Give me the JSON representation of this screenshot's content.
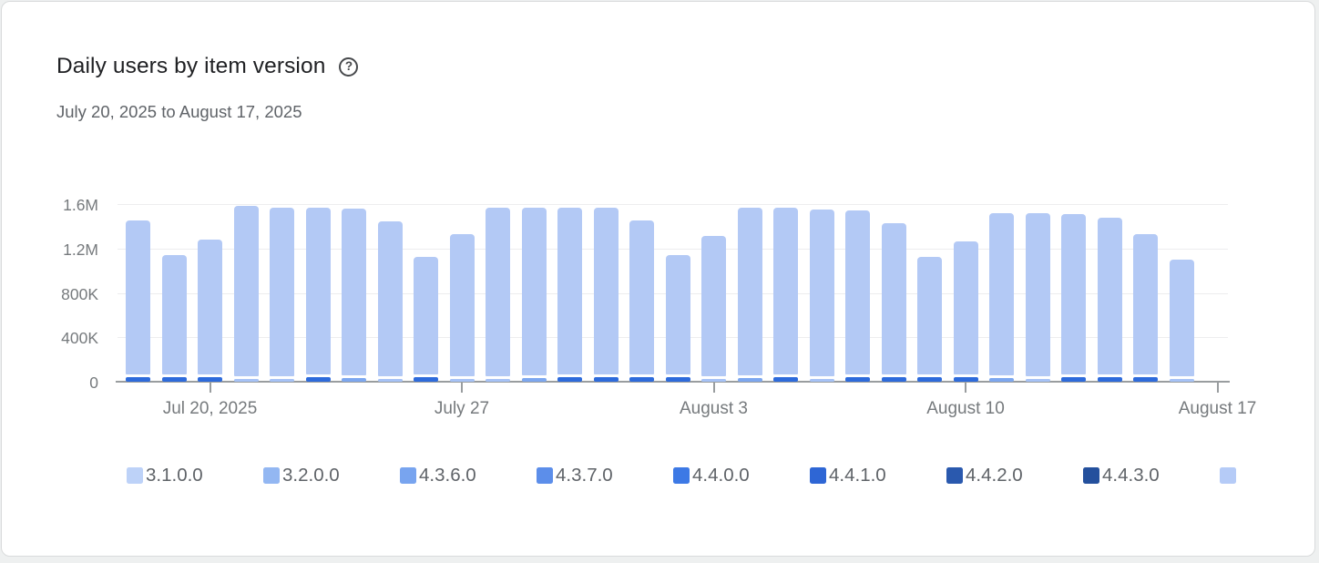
{
  "card": {
    "title": "Daily users by item version",
    "help_icon": "?",
    "date_range": "July 20, 2025 to August 17, 2025"
  },
  "chart_data": {
    "type": "bar",
    "stacked": true,
    "title": "Daily users by item version",
    "subtitle_range": "July 20, 2025 to August 17, 2025",
    "xlabel": "",
    "ylabel": "",
    "ylim": [
      0,
      1600000
    ],
    "grid": true,
    "legend_position": "bottom",
    "yticks": [
      {
        "label": "1.6M",
        "value": 1600000
      },
      {
        "label": "1.2M",
        "value": 1200000
      },
      {
        "label": "800K",
        "value": 800000
      },
      {
        "label": "400K",
        "value": 400000
      },
      {
        "label": "0",
        "value": 0
      }
    ],
    "num_slots": 31,
    "xticks": [
      {
        "label": "Jul 20, 2025",
        "slot": 2
      },
      {
        "label": "July 27",
        "slot": 9
      },
      {
        "label": "August 3",
        "slot": 16
      },
      {
        "label": "August 10",
        "slot": 23
      },
      {
        "label": "August 17",
        "slot": 30
      }
    ],
    "bar_body_color": "#b3c9f5",
    "legend": [
      {
        "label": "3.1.0.0",
        "color": "#bdd2f8"
      },
      {
        "label": "3.2.0.0",
        "color": "#93b7f2"
      },
      {
        "label": "4.3.6.0",
        "color": "#78a4ef"
      },
      {
        "label": "4.3.7.0",
        "color": "#5c8eea"
      },
      {
        "label": "4.4.0.0",
        "color": "#3d79e5"
      },
      {
        "label": "4.4.1.0",
        "color": "#2e66d5"
      },
      {
        "label": "4.4.2.0",
        "color": "#2a59ae"
      },
      {
        "label": "4.4.3.0",
        "color": "#24509d"
      },
      {
        "label": "",
        "color": "#b5cbf7"
      }
    ],
    "bars": [
      {
        "total": 1450000,
        "bottom_value": 40000,
        "bottom_color": "#2e6bdb"
      },
      {
        "total": 1140000,
        "bottom_value": 40000,
        "bottom_color": "#2e6bdb"
      },
      {
        "total": 1280000,
        "bottom_value": 40000,
        "bottom_color": "#2e6bdb"
      },
      {
        "total": 1580000,
        "bottom_value": 25000,
        "bottom_color": "#a6c2f6"
      },
      {
        "total": 1570000,
        "bottom_value": 25000,
        "bottom_color": "#a6c2f6"
      },
      {
        "total": 1570000,
        "bottom_value": 40000,
        "bottom_color": "#2e6bdb"
      },
      {
        "total": 1560000,
        "bottom_value": 30000,
        "bottom_color": "#7da7ef"
      },
      {
        "total": 1440000,
        "bottom_value": 25000,
        "bottom_color": "#a6c2f6"
      },
      {
        "total": 1120000,
        "bottom_value": 40000,
        "bottom_color": "#2e6bdb"
      },
      {
        "total": 1330000,
        "bottom_value": 25000,
        "bottom_color": "#a6c2f6"
      },
      {
        "total": 1570000,
        "bottom_value": 25000,
        "bottom_color": "#a6c2f6"
      },
      {
        "total": 1570000,
        "bottom_value": 30000,
        "bottom_color": "#7da7ef"
      },
      {
        "total": 1570000,
        "bottom_value": 40000,
        "bottom_color": "#2e6bdb"
      },
      {
        "total": 1570000,
        "bottom_value": 40000,
        "bottom_color": "#2e6bdb"
      },
      {
        "total": 1450000,
        "bottom_value": 40000,
        "bottom_color": "#2e6bdb"
      },
      {
        "total": 1140000,
        "bottom_value": 40000,
        "bottom_color": "#2e6bdb"
      },
      {
        "total": 1310000,
        "bottom_value": 25000,
        "bottom_color": "#a6c2f6"
      },
      {
        "total": 1570000,
        "bottom_value": 30000,
        "bottom_color": "#7da7ef"
      },
      {
        "total": 1570000,
        "bottom_value": 40000,
        "bottom_color": "#2e6bdb"
      },
      {
        "total": 1550000,
        "bottom_value": 25000,
        "bottom_color": "#a6c2f6"
      },
      {
        "total": 1540000,
        "bottom_value": 40000,
        "bottom_color": "#2e6bdb"
      },
      {
        "total": 1430000,
        "bottom_value": 40000,
        "bottom_color": "#2e6bdb"
      },
      {
        "total": 1120000,
        "bottom_value": 40000,
        "bottom_color": "#2e6bdb"
      },
      {
        "total": 1260000,
        "bottom_value": 40000,
        "bottom_color": "#2e6bdb"
      },
      {
        "total": 1520000,
        "bottom_value": 30000,
        "bottom_color": "#7da7ef"
      },
      {
        "total": 1520000,
        "bottom_value": 25000,
        "bottom_color": "#a6c2f6"
      },
      {
        "total": 1510000,
        "bottom_value": 40000,
        "bottom_color": "#2e6bdb"
      },
      {
        "total": 1480000,
        "bottom_value": 40000,
        "bottom_color": "#2e6bdb"
      },
      {
        "total": 1330000,
        "bottom_value": 40000,
        "bottom_color": "#2e6bdb"
      },
      {
        "total": 1100000,
        "bottom_value": 25000,
        "bottom_color": "#a6c2f6"
      }
    ]
  }
}
